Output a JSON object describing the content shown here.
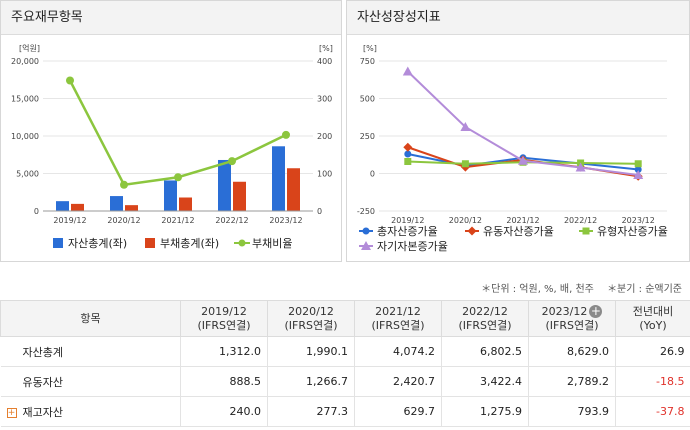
{
  "left_panel": {
    "title": "주요재무항목",
    "chart_data": {
      "type": "bar",
      "categories": [
        "2019/12",
        "2020/12",
        "2021/12",
        "2022/12",
        "2023/12"
      ],
      "left_unit": "[억원]",
      "right_unit": "[%]",
      "left_ticks": [
        "20,000",
        "15,000",
        "10,000",
        "5,000",
        "0"
      ],
      "left_tick_values": [
        20000,
        15000,
        10000,
        5000,
        0
      ],
      "right_ticks": [
        "400",
        "300",
        "200",
        "100",
        "0"
      ],
      "right_tick_values": [
        400,
        300,
        200,
        100,
        0
      ],
      "ylim": [
        0,
        20000
      ],
      "y2lim": [
        0,
        400
      ],
      "series": [
        {
          "name": "자산총계(좌)",
          "type": "bar",
          "color": "#2a6ed6",
          "values": [
            1312.0,
            1990.1,
            4074.2,
            6802.5,
            8629.0
          ]
        },
        {
          "name": "부채총계(좌)",
          "type": "bar",
          "color": "#d9441a",
          "values": [
            950,
            780,
            1800,
            3900,
            5700
          ]
        },
        {
          "name": "부채비율",
          "type": "line",
          "axis": "right",
          "color": "#8cc63e",
          "values": [
            348,
            70,
            90,
            133,
            203
          ]
        }
      ]
    }
  },
  "right_panel": {
    "title": "자산성장성지표",
    "chart_data": {
      "type": "line",
      "categories": [
        "2019/12",
        "2020/12",
        "2021/12",
        "2022/12",
        "2023/12"
      ],
      "unit": "[%]",
      "ticks": [
        "750",
        "500",
        "250",
        "0",
        "-250"
      ],
      "tick_values": [
        750,
        500,
        250,
        0,
        -250
      ],
      "ylim": [
        -250,
        750
      ],
      "series": [
        {
          "name": "총자산증가율",
          "color": "#2a6ed6",
          "marker": "circle",
          "values": [
            130,
            51.7,
            104.7,
            67.0,
            26.9
          ]
        },
        {
          "name": "유동자산증가율",
          "color": "#d9441a",
          "marker": "diamond",
          "values": [
            175,
            42.6,
            91.1,
            41.4,
            -18.5
          ]
        },
        {
          "name": "유형자산증가율",
          "color": "#8cc63e",
          "marker": "square",
          "values": [
            80,
            65,
            75,
            70,
            65
          ]
        },
        {
          "name": "자기자본증가율",
          "color": "#b38cd9",
          "marker": "triangle",
          "values": [
            680,
            310,
            85,
            40,
            -10
          ]
        }
      ]
    }
  },
  "units_note": {
    "unit": "＊단위 : 억원, %, 배, 천주",
    "quarter": "＊분기 : 순액기준"
  },
  "table": {
    "header_item": "항목",
    "columns": [
      {
        "year": "2019/12",
        "basis": "(IFRS연결)"
      },
      {
        "year": "2020/12",
        "basis": "(IFRS연결)"
      },
      {
        "year": "2021/12",
        "basis": "(IFRS연결)"
      },
      {
        "year": "2022/12",
        "basis": "(IFRS연결)"
      },
      {
        "year": "2023/12",
        "basis": "(IFRS연결)"
      }
    ],
    "yoy_header": "전년대비",
    "yoy_sub": "(YoY)",
    "plus_symbol": "+",
    "expand_symbol": "+",
    "rows": [
      {
        "name": "자산총계",
        "values": [
          "1,312.0",
          "1,990.1",
          "4,074.2",
          "6,802.5",
          "8,629.0"
        ],
        "yoy": "26.9",
        "negative": false,
        "expandable": false
      },
      {
        "name": "유동자산",
        "values": [
          "888.5",
          "1,266.7",
          "2,420.7",
          "3,422.4",
          "2,789.2"
        ],
        "yoy": "-18.5",
        "negative": true,
        "expandable": false
      },
      {
        "name": "재고자산",
        "values": [
          "240.0",
          "277.3",
          "629.7",
          "1,275.9",
          "793.9"
        ],
        "yoy": "-37.8",
        "negative": true,
        "expandable": true
      }
    ]
  }
}
